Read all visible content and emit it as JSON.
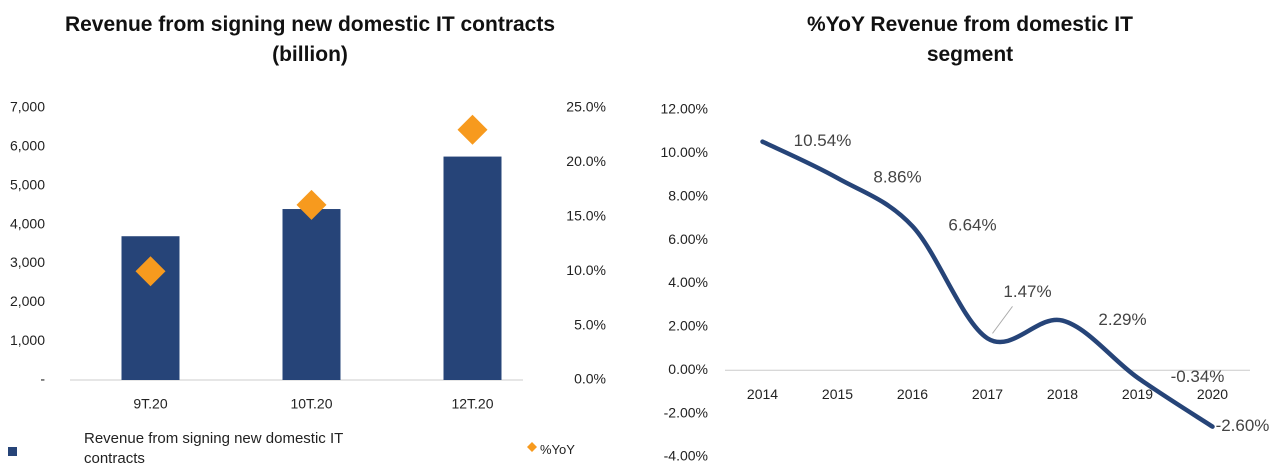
{
  "chart_data": [
    {
      "type": "bar",
      "title": "Revenue from signing new domestic IT contracts  (billion)",
      "categories": [
        "9T.20",
        "10T.20",
        "12T.20"
      ],
      "series": [
        {
          "name": "Revenue from signing new domestic IT contracts",
          "color": "#264478",
          "values": [
            3700,
            4400,
            5750
          ]
        },
        {
          "name": "%YoY",
          "color": "#f79a1e",
          "values": [
            10.0,
            16.1,
            23.0
          ],
          "axis": "y2",
          "marker": "diamond"
        }
      ],
      "ylim": [
        0,
        7000
      ],
      "yticks": [
        {
          "value": 0,
          "label": "-"
        },
        {
          "value": 1000,
          "label": "1,000"
        },
        {
          "value": 2000,
          "label": "2,000"
        },
        {
          "value": 3000,
          "label": "3,000"
        },
        {
          "value": 4000,
          "label": "4,000"
        },
        {
          "value": 5000,
          "label": "5,000"
        },
        {
          "value": 6000,
          "label": "6,000"
        },
        {
          "value": 7000,
          "label": "7,000"
        }
      ],
      "y2lim": [
        0,
        25
      ],
      "y2ticks": [
        {
          "value": 0,
          "label": "0.0%"
        },
        {
          "value": 5,
          "label": "5.0%"
        },
        {
          "value": 10,
          "label": "10.0%"
        },
        {
          "value": 15,
          "label": "15.0%"
        },
        {
          "value": 20,
          "label": "20.0%"
        },
        {
          "value": 25,
          "label": "25.0%"
        }
      ],
      "legend": "bottom"
    },
    {
      "type": "line",
      "title": "%YoY Revenue from domestic IT segment",
      "categories": [
        "2014",
        "2015",
        "2016",
        "2017",
        "2018",
        "2019",
        "2020"
      ],
      "values": [
        10.54,
        8.86,
        6.64,
        1.47,
        2.29,
        -0.34,
        -2.6
      ],
      "value_labels": [
        "10.54%",
        "8.86%",
        "6.64%",
        "1.47%",
        "2.29%",
        "-0.34%",
        "-2.60%"
      ],
      "color": "#264478",
      "ylim": [
        -4,
        12
      ],
      "yticks": [
        {
          "value": -4,
          "label": "-4.00%"
        },
        {
          "value": -2,
          "label": "-2.00%"
        },
        {
          "value": 0,
          "label": "0.00%"
        },
        {
          "value": 2,
          "label": "2.00%"
        },
        {
          "value": 4,
          "label": "4.00%"
        },
        {
          "value": 6,
          "label": "6.00%"
        },
        {
          "value": 8,
          "label": "8.00%"
        },
        {
          "value": 10,
          "label": "10.00%"
        },
        {
          "value": 12,
          "label": "12.00%"
        }
      ]
    }
  ]
}
